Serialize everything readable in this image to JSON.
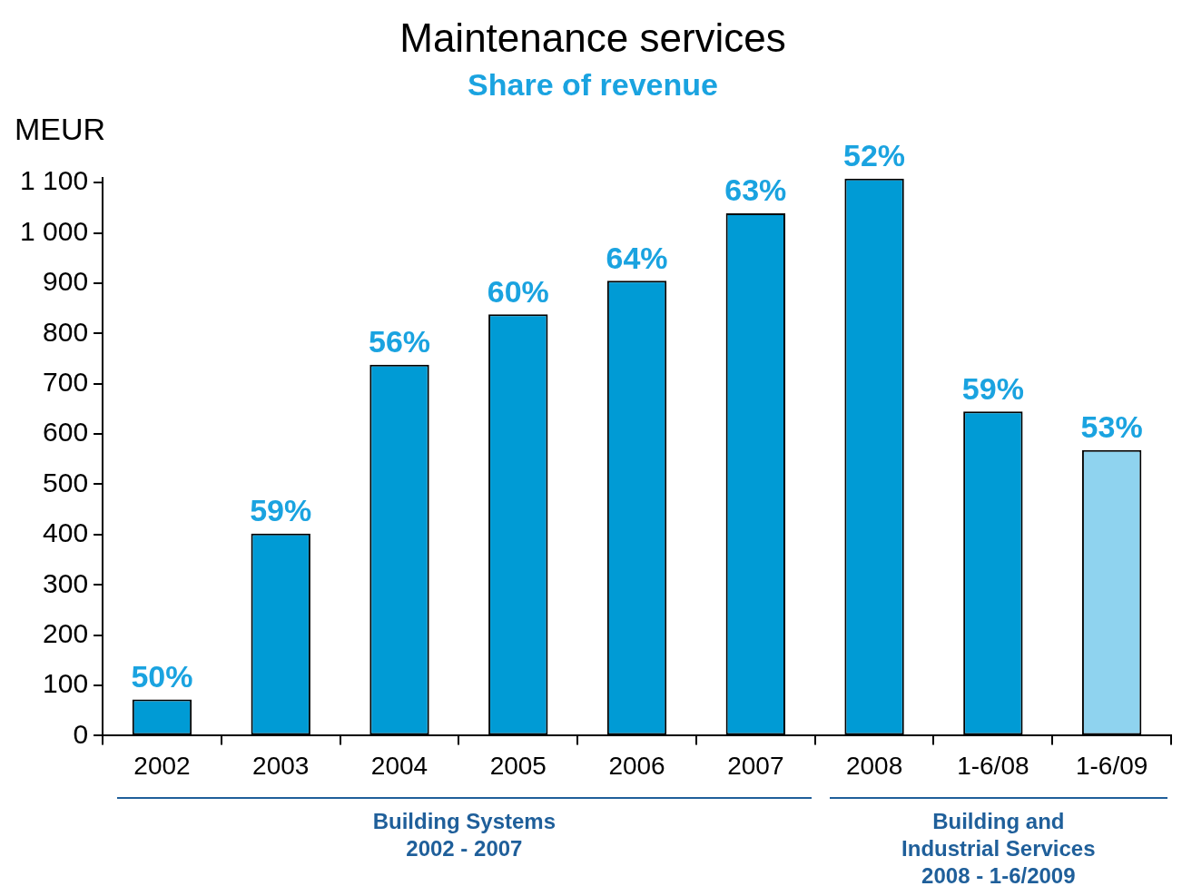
{
  "chart_data": {
    "type": "bar",
    "title": "Maintenance services",
    "subtitle": "Share of revenue",
    "ylabel": "MEUR",
    "categories": [
      "2002",
      "2003",
      "2004",
      "2005",
      "2006",
      "2007",
      "2008",
      "1-6/08",
      "1-6/09"
    ],
    "values": [
      72,
      402,
      738,
      838,
      905,
      1039,
      1108,
      645,
      568
    ],
    "colors": [
      "#009bd5",
      "#009bd5",
      "#009bd5",
      "#009bd5",
      "#009bd5",
      "#009bd5",
      "#009bd5",
      "#009bd5",
      "#8fd3ef"
    ],
    "ylim": [
      0,
      1110
    ],
    "yticks": [
      0,
      100,
      200,
      300,
      400,
      500,
      600,
      700,
      800,
      900,
      {
        "value": 1000,
        "label": "1 000"
      },
      {
        "value": 1100,
        "label": "1 100"
      }
    ],
    "annotations": [
      {
        "text": "50%",
        "x": "2002",
        "y": 72
      },
      {
        "text": "59%",
        "x": "2003",
        "y": 402
      },
      {
        "text": "56%",
        "x": "2004",
        "y": 738
      },
      {
        "text": "60%",
        "x": "2005",
        "y": 838
      },
      {
        "text": "64%",
        "x": "2006",
        "y": 905
      },
      {
        "text": "63%",
        "x": "2007",
        "y": 1039
      },
      {
        "text": "52%",
        "x": "2008",
        "y": 1108
      },
      {
        "text": "59%",
        "x": "1-6/08",
        "y": 645
      },
      {
        "text": "53%",
        "x": "1-6/09",
        "y": 568
      },
      "Building Systems\n2002 - 2007",
      "Building and\nIndustrial Services\n2008 - 1-6/2009"
    ]
  }
}
